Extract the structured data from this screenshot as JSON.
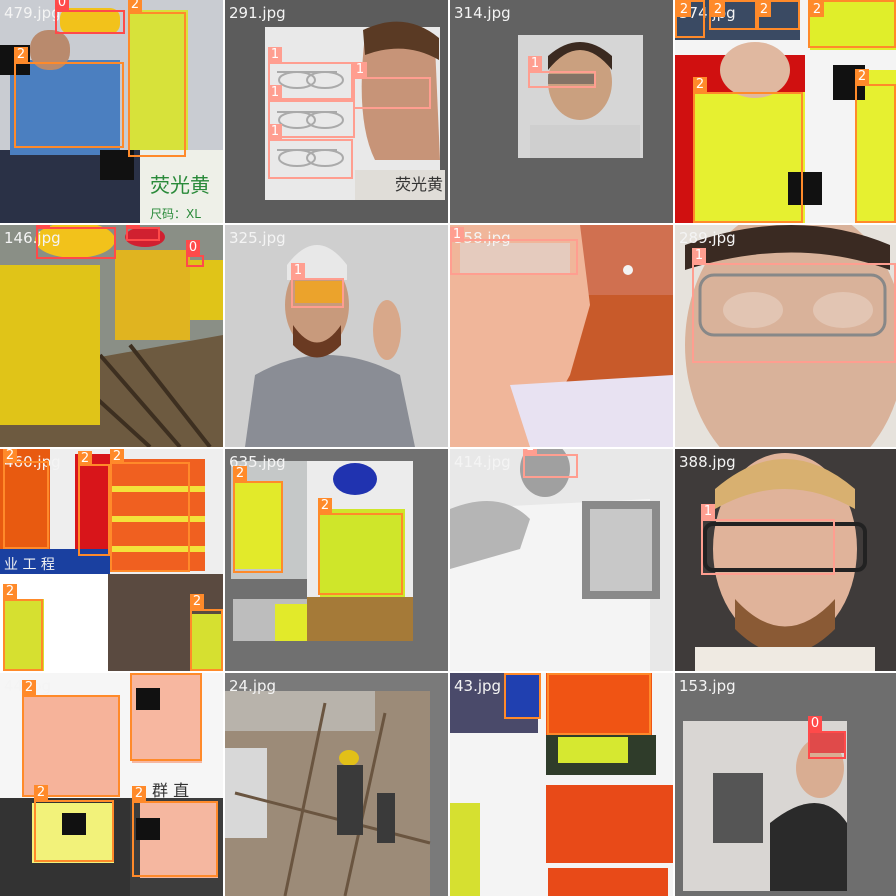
{
  "tiles": [
    {
      "file": "479.jpg"
    },
    {
      "file": "291.jpg"
    },
    {
      "file": "314.jpg"
    },
    {
      "file": "374.jpg"
    },
    {
      "file": "146.jpg"
    },
    {
      "file": "325.jpg"
    },
    {
      "file": "358.jpg"
    },
    {
      "file": "289.jpg"
    },
    {
      "file": "460.jpg"
    },
    {
      "file": "635.jpg"
    },
    {
      "file": "414.jpg"
    },
    {
      "file": "388.jpg"
    },
    {
      "file": "44.jpg"
    },
    {
      "file": "24.jpg"
    },
    {
      "file": "43.jpg"
    },
    {
      "file": "153.jpg"
    }
  ],
  "class_labels": {
    "c0": "0",
    "c1": "1",
    "c2": "2"
  },
  "scene_text": {
    "sign_1": "荧光黄",
    "sign_2": "尺码：XL",
    "sign_3": "荧光黄",
    "sign_4": "业 工 程",
    "sign_5": "群 直"
  },
  "colors": {
    "vest_box": "#ff8a2a",
    "glasses_box": "#ff9e90",
    "helmet_box": "#ff4a4a",
    "separator": "#ffffff"
  }
}
